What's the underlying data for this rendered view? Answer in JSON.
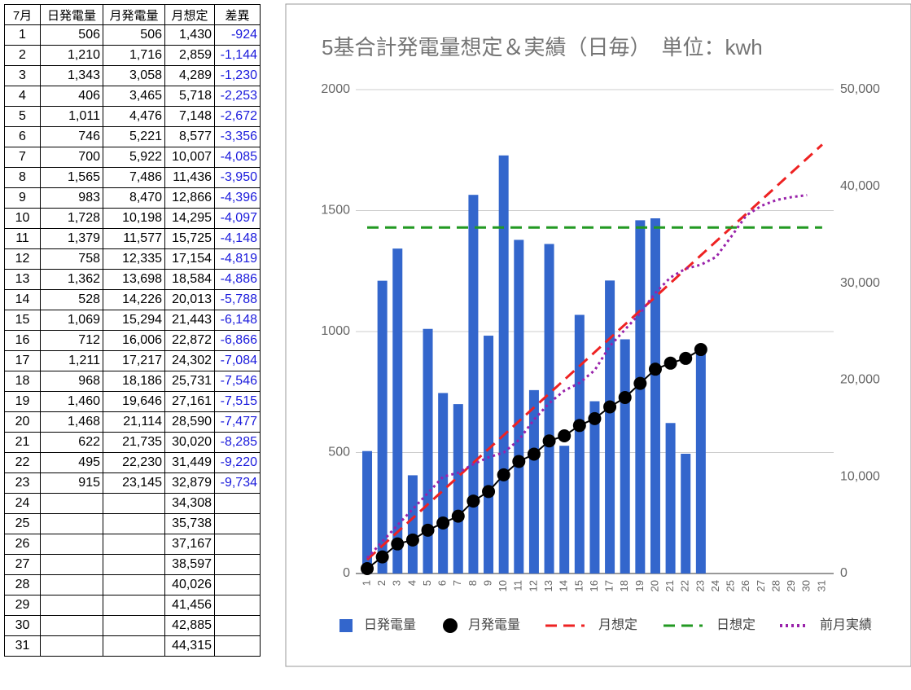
{
  "table": {
    "header": [
      "7月",
      "日発電量",
      "月発電量",
      "月想定",
      "差異"
    ],
    "rows": [
      [
        "1",
        "506",
        "506",
        "1,430",
        "-924"
      ],
      [
        "2",
        "1,210",
        "1,716",
        "2,859",
        "-1,144"
      ],
      [
        "3",
        "1,343",
        "3,058",
        "4,289",
        "-1,230"
      ],
      [
        "4",
        "406",
        "3,465",
        "5,718",
        "-2,253"
      ],
      [
        "5",
        "1,011",
        "4,476",
        "7,148",
        "-2,672"
      ],
      [
        "6",
        "746",
        "5,221",
        "8,577",
        "-3,356"
      ],
      [
        "7",
        "700",
        "5,922",
        "10,007",
        "-4,085"
      ],
      [
        "8",
        "1,565",
        "7,486",
        "11,436",
        "-3,950"
      ],
      [
        "9",
        "983",
        "8,470",
        "12,866",
        "-4,396"
      ],
      [
        "10",
        "1,728",
        "10,198",
        "14,295",
        "-4,097"
      ],
      [
        "11",
        "1,379",
        "11,577",
        "15,725",
        "-4,148"
      ],
      [
        "12",
        "758",
        "12,335",
        "17,154",
        "-4,819"
      ],
      [
        "13",
        "1,362",
        "13,698",
        "18,584",
        "-4,886"
      ],
      [
        "14",
        "528",
        "14,226",
        "20,013",
        "-5,788"
      ],
      [
        "15",
        "1,069",
        "15,294",
        "21,443",
        "-6,148"
      ],
      [
        "16",
        "712",
        "16,006",
        "22,872",
        "-6,866"
      ],
      [
        "17",
        "1,211",
        "17,217",
        "24,302",
        "-7,084"
      ],
      [
        "18",
        "968",
        "18,186",
        "25,731",
        "-7,546"
      ],
      [
        "19",
        "1,460",
        "19,646",
        "27,161",
        "-7,515"
      ],
      [
        "20",
        "1,468",
        "21,114",
        "28,590",
        "-7,477"
      ],
      [
        "21",
        "622",
        "21,735",
        "30,020",
        "-8,285"
      ],
      [
        "22",
        "495",
        "22,230",
        "31,449",
        "-9,220"
      ],
      [
        "23",
        "915",
        "23,145",
        "32,879",
        "-9,734"
      ],
      [
        "24",
        null,
        null,
        "34,308",
        null
      ],
      [
        "25",
        null,
        null,
        "35,738",
        null
      ],
      [
        "26",
        null,
        null,
        "37,167",
        null
      ],
      [
        "27",
        null,
        null,
        "38,597",
        null
      ],
      [
        "28",
        null,
        null,
        "40,026",
        null
      ],
      [
        "29",
        null,
        null,
        "41,456",
        null
      ],
      [
        "30",
        null,
        null,
        "42,885",
        null
      ],
      [
        "31",
        null,
        null,
        "44,315",
        null
      ]
    ]
  },
  "chart_data": {
    "type": "bar",
    "title": "5基合計発電量想定＆実績（日毎）　単位：kwh",
    "categories": [
      "1",
      "2",
      "3",
      "4",
      "5",
      "6",
      "7",
      "8",
      "9",
      "10",
      "11",
      "12",
      "13",
      "14",
      "15",
      "16",
      "17",
      "18",
      "19",
      "20",
      "21",
      "22",
      "23",
      "24",
      "25",
      "26",
      "27",
      "28",
      "29",
      "30",
      "31"
    ],
    "ylim": [
      0,
      2000
    ],
    "yticks": [
      0,
      500,
      1000,
      1500,
      2000
    ],
    "y2lim": [
      0,
      50000
    ],
    "y2ticks": [
      0,
      {
        "value": 10000,
        "label": "10,000"
      },
      {
        "value": 20000,
        "label": "20,000"
      },
      {
        "value": 30000,
        "label": "30,000"
      },
      {
        "value": 40000,
        "label": "40,000"
      },
      {
        "value": 50000,
        "label": "50,000"
      }
    ],
    "grid": true,
    "legend": "bottom",
    "series": [
      {
        "name": "日発電量",
        "type": "bar",
        "color": "#3366cc",
        "values": [
          506,
          1210,
          1343,
          406,
          1011,
          746,
          700,
          1565,
          983,
          1728,
          1379,
          758,
          1362,
          528,
          1069,
          712,
          1211,
          968,
          1460,
          1468,
          622,
          495,
          915,
          null,
          null,
          null,
          null,
          null,
          null,
          null,
          null
        ]
      },
      {
        "name": "月発電量",
        "type": "line",
        "axis": "y2",
        "color": "#000000",
        "marker": "circle",
        "dash": "solid",
        "values": [
          506,
          1716,
          3058,
          3465,
          4476,
          5221,
          5922,
          7486,
          8470,
          10198,
          11577,
          12335,
          13698,
          14226,
          15294,
          16006,
          17217,
          18186,
          19646,
          21114,
          21735,
          22230,
          23145,
          null,
          null,
          null,
          null,
          null,
          null,
          null,
          null
        ]
      },
      {
        "name": "月想定",
        "type": "line",
        "axis": "y2",
        "color": "#ee2222",
        "dash": "dashed",
        "values": [
          1430,
          2859,
          4289,
          5718,
          7148,
          8577,
          10007,
          11436,
          12866,
          14295,
          15725,
          17154,
          18584,
          20013,
          21443,
          22872,
          24302,
          25731,
          27161,
          28590,
          30020,
          31449,
          32879,
          34308,
          35738,
          37167,
          38597,
          40026,
          41456,
          42885,
          44315
        ]
      },
      {
        "name": "日想定",
        "type": "line",
        "color": "#229922",
        "dash": "dashed",
        "values": [
          1430,
          1430,
          1430,
          1430,
          1430,
          1430,
          1430,
          1430,
          1430,
          1430,
          1430,
          1430,
          1430,
          1430,
          1430,
          1430,
          1430,
          1430,
          1430,
          1430,
          1430,
          1430,
          1430,
          1430,
          1430,
          1430,
          1430,
          1430,
          1430,
          1430,
          1430
        ]
      },
      {
        "name": "前月実績",
        "type": "line",
        "axis": "y2",
        "color": "#9922aa",
        "dash": "dotted",
        "values": [
          1600,
          3300,
          5000,
          6650,
          8300,
          10000,
          10400,
          11300,
          12000,
          12500,
          13800,
          15900,
          17600,
          18900,
          19700,
          21000,
          23500,
          25200,
          26900,
          29000,
          30600,
          31500,
          31900,
          32700,
          34800,
          37000,
          38000,
          38600,
          38900,
          39100,
          null
        ]
      }
    ]
  }
}
